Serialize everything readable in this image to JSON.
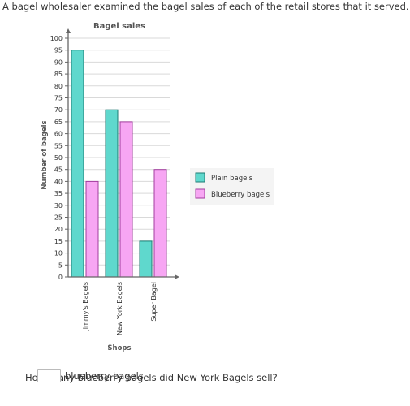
{
  "question_intro": "A bagel wholesaler examined the bagel sales of each of the retail stores that it served.",
  "question_prompt": "How many blueberry bagels did New York Bagels sell?",
  "answer": {
    "value": "",
    "unit": "blueberry bagels"
  },
  "chart_data": {
    "type": "bar",
    "title": "Bagel sales",
    "xlabel": "Shops",
    "ylabel": "Number of bagels",
    "categories": [
      "Jimmy's Bagels",
      "New York Bagels",
      "Super Bagel"
    ],
    "series": [
      {
        "name": "Plain bagels",
        "values": [
          95,
          70,
          15
        ],
        "fill": "#5fd8cd",
        "stroke": "#1c7a72"
      },
      {
        "name": "Blueberry bagels",
        "values": [
          40,
          65,
          45
        ],
        "fill": "#f7a6f3",
        "stroke": "#a23c9e"
      }
    ],
    "ylim": [
      0,
      100
    ],
    "y_ticks": [
      0,
      5,
      10,
      15,
      20,
      25,
      30,
      35,
      40,
      45,
      50,
      55,
      60,
      65,
      70,
      75,
      80,
      85,
      90,
      95,
      100
    ],
    "grid": true,
    "legend": "right"
  }
}
